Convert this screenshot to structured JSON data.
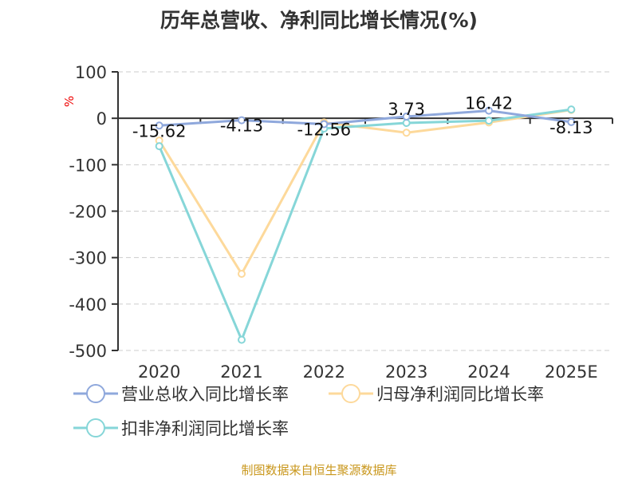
{
  "chart_data": {
    "type": "line",
    "title": "历年总营收、净利同比增长情况(%)",
    "ylabel": "%",
    "categories": [
      "2020",
      "2021",
      "2022",
      "2023",
      "2024",
      "2025E"
    ],
    "ylim": [
      -500,
      100
    ],
    "yticks": [
      100,
      0,
      -100,
      -200,
      -300,
      -400,
      -500
    ],
    "grid": true,
    "legend_position": "bottom",
    "series": [
      {
        "name": "营业总收入同比增长率",
        "color": "#8fa8dc",
        "values": [
          -15.62,
          -4.13,
          -12.56,
          3.73,
          16.42,
          -8.13
        ],
        "labels": [
          "-15.62",
          "-4.13",
          "-12.56",
          "3.73",
          "16.42",
          "-8.13"
        ]
      },
      {
        "name": "归母净利润同比增长率",
        "color": "#fdd99b",
        "values": [
          -48,
          -335,
          -9,
          -31,
          -9,
          18
        ]
      },
      {
        "name": "扣非净利润同比增长率",
        "color": "#86d6d8",
        "values": [
          -60,
          -477,
          -22,
          -10,
          -5,
          19
        ]
      }
    ]
  },
  "footer": "制图数据来自恒生聚源数据库"
}
